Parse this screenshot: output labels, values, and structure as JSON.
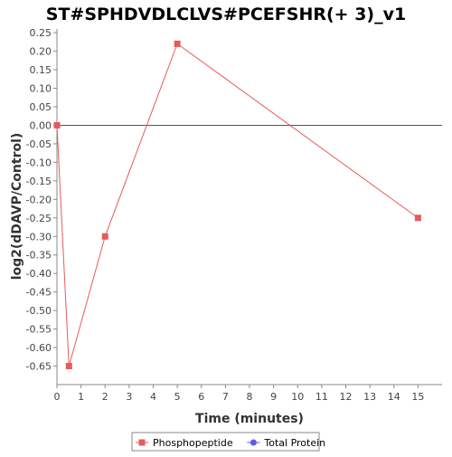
{
  "chart_data": {
    "type": "line",
    "title": "ST#SPHDVDLCLVS#PCEFSHR(+ 3)_v1",
    "xlabel": "Time (minutes)",
    "ylabel": "log2(dDAVP/Control)",
    "xlim": [
      0,
      16
    ],
    "ylim": [
      -0.7,
      0.26
    ],
    "x_ticks": [
      0,
      1,
      2,
      3,
      4,
      5,
      6,
      7,
      8,
      9,
      10,
      11,
      12,
      13,
      14,
      15
    ],
    "y_ticks": [
      0.25,
      0.2,
      0.15,
      0.1,
      0.05,
      0.0,
      -0.05,
      -0.1,
      -0.15,
      -0.2,
      -0.25,
      -0.3,
      -0.35,
      -0.4,
      -0.45,
      -0.5,
      -0.55,
      -0.6,
      -0.65
    ],
    "y_tick_labels": [
      "0.25",
      "0.20",
      "0.15",
      "0.10",
      "0.05",
      "0.00",
      "-0.05",
      "-0.10",
      "-0.15",
      "-0.20",
      "-0.25",
      "-0.30",
      "-0.35",
      "-0.40",
      "-0.45",
      "-0.50",
      "-0.55",
      "-0.60",
      "-0.65"
    ],
    "series": [
      {
        "name": "Phosphopeptide",
        "color": "#e8595a",
        "marker": "square",
        "x": [
          0,
          0.5,
          2,
          5,
          15
        ],
        "y": [
          0.0,
          -0.65,
          -0.3,
          0.22,
          -0.25
        ]
      },
      {
        "name": "Total Protein",
        "color": "#5a5ae8",
        "marker": "circle",
        "x": [],
        "y": []
      }
    ],
    "zero_line": true,
    "grid": false,
    "legend_position": "bottom-center"
  }
}
